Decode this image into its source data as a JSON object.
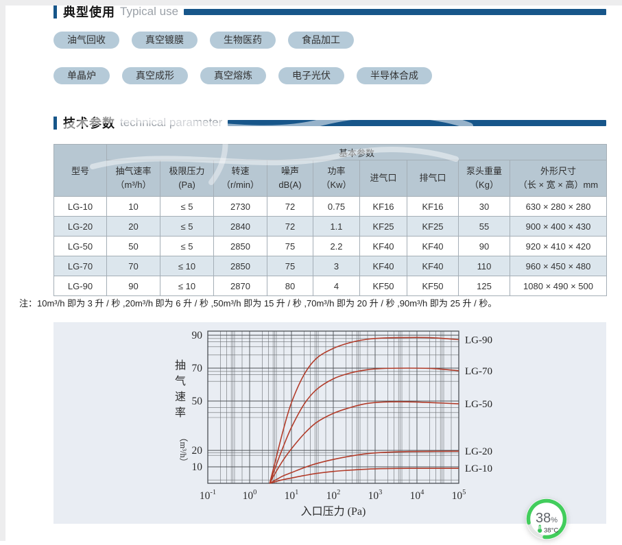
{
  "sections": {
    "typical_use": {
      "title_cn": "典型使用",
      "title_en": "Typical use"
    },
    "tech_param": {
      "title_cn": "技术参数",
      "title_en": "technical parameter"
    }
  },
  "pills": {
    "row1": [
      "油气回收",
      "真空镀膜",
      "生物医药",
      "食品加工"
    ],
    "row2": [
      "单晶炉",
      "真空成形",
      "真空熔炼",
      "电子光伏",
      "半导体合成"
    ]
  },
  "table": {
    "model_header": "型号",
    "group_header": "基本参数",
    "columns": [
      {
        "label": "抽气速率",
        "unit": "（m³/h）"
      },
      {
        "label": "极限压力",
        "unit": "(Pa)"
      },
      {
        "label": "转速",
        "unit": "（r/min）"
      },
      {
        "label": "噪声",
        "unit": "dB(A)"
      },
      {
        "label": "功率",
        "unit": "（Kw）"
      },
      {
        "label": "进气口",
        "unit": ""
      },
      {
        "label": "排气口",
        "unit": ""
      },
      {
        "label": "泵头重量",
        "unit": "（Kg）"
      },
      {
        "label": "外形尺寸",
        "unit": "（长 × 宽 × 高）mm"
      }
    ],
    "rows": [
      [
        "LG-10",
        "10",
        "≤ 5",
        "2730",
        "72",
        "0.75",
        "KF16",
        "KF16",
        "30",
        "630 × 280 × 280"
      ],
      [
        "LG-20",
        "20",
        "≤ 5",
        "2840",
        "72",
        "1.1",
        "KF25",
        "KF25",
        "55",
        "900 × 400 × 430"
      ],
      [
        "LG-50",
        "50",
        "≤ 5",
        "2850",
        "75",
        "2.2",
        "KF40",
        "KF40",
        "90",
        "920 × 410 × 420"
      ],
      [
        "LG-70",
        "70",
        "≤ 10",
        "2850",
        "75",
        "3",
        "KF40",
        "KF40",
        "110",
        "960 × 450 × 480"
      ],
      [
        "LG-90",
        "90",
        "≤ 10",
        "2870",
        "80",
        "4",
        "KF50",
        "KF50",
        "125",
        "1080 × 490 × 500"
      ]
    ]
  },
  "note": "注：10m³/h 即为 3 升 / 秒 ,20m³/h 即为 6 升 / 秒 ,50m³/h 即为 15 升 / 秒 ,70m³/h 即为 20 升 / 秒 ,90m³/h 即为 25 升 / 秒。",
  "chart_data": {
    "type": "line",
    "x_axis": {
      "label": "入口压力 (Pa)",
      "scale": "log",
      "tick_exponents": [
        -1,
        0,
        1,
        2,
        3,
        4,
        5
      ],
      "range_pa": [
        0.1,
        100000
      ]
    },
    "y_axis": {
      "label": "抽气速率",
      "unit": "（m³/h）",
      "ticks": [
        90,
        70,
        50,
        20,
        10
      ],
      "range": [
        0,
        92.5
      ]
    },
    "grid": {
      "minor_log_offsets": [
        0.3,
        0.45,
        0.56,
        0.6,
        0.64,
        0.82
      ],
      "minor_y_values": [
        2,
        17,
        18.5,
        40,
        43,
        46,
        62,
        66,
        68,
        78,
        83,
        86,
        88
      ]
    },
    "series": [
      {
        "name": "LG-90",
        "points": [
          [
            0.48,
            0
          ],
          [
            0.62,
            14
          ],
          [
            0.8,
            32
          ],
          [
            1.0,
            49
          ],
          [
            1.3,
            66
          ],
          [
            1.6,
            76
          ],
          [
            2.0,
            82
          ],
          [
            2.4,
            85.5
          ],
          [
            2.8,
            87.5
          ],
          [
            3.2,
            88.3
          ],
          [
            3.8,
            88.6
          ],
          [
            4.4,
            88.4
          ],
          [
            5.0,
            87.3
          ]
        ]
      },
      {
        "name": "LG-70",
        "points": [
          [
            0.48,
            0
          ],
          [
            0.62,
            10
          ],
          [
            0.8,
            22
          ],
          [
            1.0,
            34
          ],
          [
            1.3,
            48
          ],
          [
            1.6,
            57
          ],
          [
            2.0,
            63.5
          ],
          [
            2.4,
            67
          ],
          [
            2.8,
            69
          ],
          [
            3.2,
            69.8
          ],
          [
            3.8,
            70
          ],
          [
            4.4,
            69.7
          ],
          [
            5.0,
            68.4
          ]
        ]
      },
      {
        "name": "LG-50",
        "points": [
          [
            0.48,
            0
          ],
          [
            0.62,
            6.5
          ],
          [
            0.8,
            14
          ],
          [
            1.0,
            21
          ],
          [
            1.3,
            30
          ],
          [
            1.6,
            37
          ],
          [
            2.0,
            42.5
          ],
          [
            2.4,
            46
          ],
          [
            2.8,
            48.5
          ],
          [
            3.2,
            49.4
          ],
          [
            3.8,
            49.5
          ],
          [
            4.4,
            49
          ],
          [
            5.0,
            48.3
          ]
        ]
      },
      {
        "name": "LG-20",
        "points": [
          [
            0.48,
            0
          ],
          [
            0.62,
            2
          ],
          [
            0.8,
            4.5
          ],
          [
            1.0,
            6.5
          ],
          [
            1.3,
            9.5
          ],
          [
            1.6,
            12
          ],
          [
            2.0,
            14.5
          ],
          [
            2.4,
            16.5
          ],
          [
            2.8,
            18
          ],
          [
            3.2,
            18.8
          ],
          [
            3.8,
            19.3
          ],
          [
            5.0,
            19.5
          ]
        ]
      },
      {
        "name": "LG-10",
        "points": [
          [
            0.48,
            0
          ],
          [
            0.62,
            1
          ],
          [
            0.8,
            2.2
          ],
          [
            1.0,
            3.2
          ],
          [
            1.3,
            4.7
          ],
          [
            1.6,
            6
          ],
          [
            2.0,
            7.2
          ],
          [
            2.4,
            8
          ],
          [
            2.8,
            8.6
          ],
          [
            3.2,
            8.9
          ],
          [
            3.8,
            9.1
          ],
          [
            5.0,
            9.1
          ]
        ]
      }
    ],
    "curve_color": "#b23c2a",
    "grid_color": "#6a6e72",
    "panel_bg": "#e9edf3"
  },
  "badge": {
    "percent": "38",
    "percent_sign": "%",
    "temperature": "38°C"
  },
  "colors": {
    "accent_blue": "#17568a",
    "pill_bg": "#b5cad8",
    "table_header_bg": "#b7c7d2",
    "table_alt_row": "#dce6ed",
    "badge_green": "#42cd5c"
  }
}
